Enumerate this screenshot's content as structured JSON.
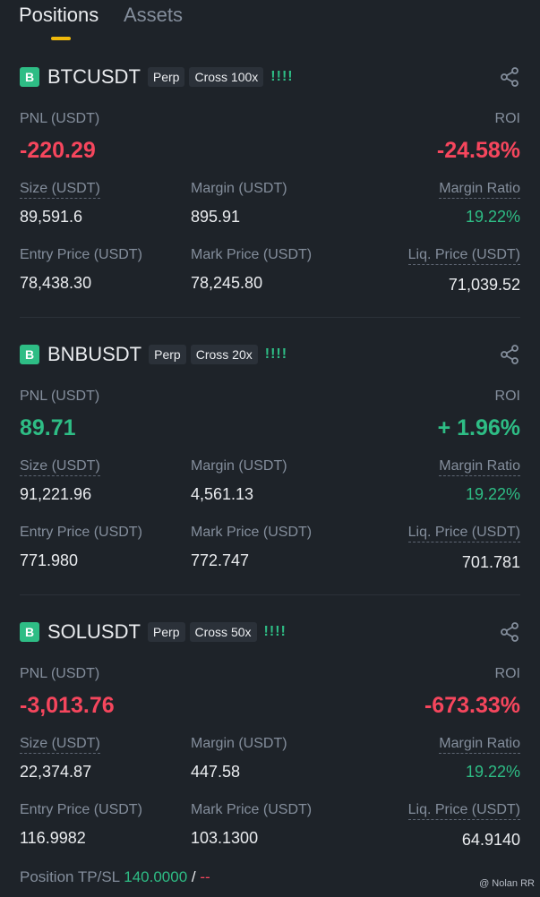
{
  "tabs": {
    "positions": "Positions",
    "assets": "Assets"
  },
  "labels": {
    "pnl": "PNL (USDT)",
    "roi": "ROI",
    "size": "Size (USDT)",
    "margin": "Margin (USDT)",
    "margin_ratio": "Margin Ratio",
    "entry": "Entry Price (USDT)",
    "mark": "Mark Price (USDT)",
    "liq": "Liq. Price (USDT)"
  },
  "positions": [
    {
      "badge": "B",
      "symbol": "BTCUSDT",
      "type": "Perp",
      "mode": "Cross 100x",
      "bars": "!!!!",
      "pnl": "-220.29",
      "roi": "-24.58%",
      "size": "89,591.6",
      "margin": "895.91",
      "margin_ratio": "19.22%",
      "entry": "78,438.30",
      "mark": "78,245.80",
      "liq": "71,039.52"
    },
    {
      "badge": "B",
      "symbol": "BNBUSDT",
      "type": "Perp",
      "mode": "Cross 20x",
      "bars": "!!!!",
      "pnl": "89.71",
      "roi": "+ 1.96%",
      "size": "91,221.96",
      "margin": "4,561.13",
      "margin_ratio": "19.22%",
      "entry": "771.980",
      "mark": "772.747",
      "liq": "701.781"
    },
    {
      "badge": "B",
      "symbol": "SOLUSDT",
      "type": "Perp",
      "mode": "Cross 50x",
      "bars": "!!!!",
      "pnl": "-3,013.76",
      "roi": "-673.33%",
      "size": "22,374.87",
      "margin": "447.58",
      "margin_ratio": "19.22%",
      "entry": "116.9982",
      "mark": "103.1300",
      "liq": "64.9140"
    }
  ],
  "tpsl": {
    "label": "Position TP/SL",
    "tp": "140.0000",
    "sep": "/",
    "sl": "--"
  },
  "watermark": "@ Nolan RR"
}
